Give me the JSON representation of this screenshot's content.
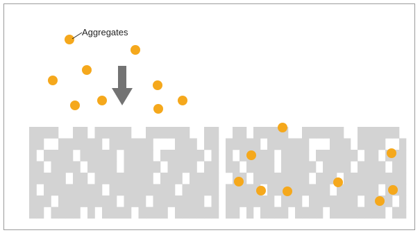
{
  "label": "Aggregates",
  "colors": {
    "aggregate": "#f5a81c",
    "block": "#d3d3d3",
    "arrow": "#737373",
    "border": "#9a9a9a"
  }
}
